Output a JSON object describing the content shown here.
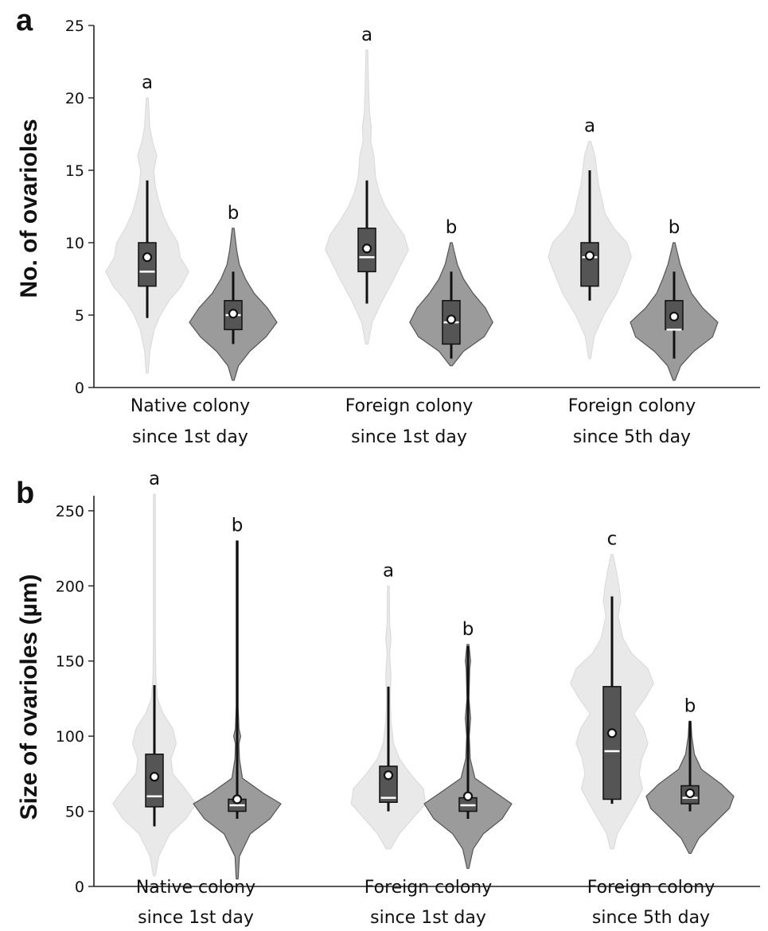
{
  "chart_data": [
    {
      "type": "violin",
      "panel": "a",
      "ylabel": "No. of ovarioles",
      "ylim": [
        0,
        25
      ],
      "yticks": [
        0,
        5,
        10,
        15,
        20,
        25
      ],
      "categories": [
        [
          "Native colony",
          "since 1st day"
        ],
        [
          "Foreign colony",
          "since 1st day"
        ],
        [
          "Foreign colony",
          "since 5th day"
        ]
      ],
      "groups": [
        {
          "violin_color": "#e9e9e9",
          "box": {
            "min": 4.8,
            "q1": 7,
            "median": 8,
            "q3": 10,
            "max": 14.3,
            "mean": 9.0
          },
          "violin": {
            "min": 1,
            "max": 20,
            "density": [
              [
                1,
                0.02
              ],
              [
                2.5,
                0.06
              ],
              [
                4,
                0.16
              ],
              [
                5,
                0.3
              ],
              [
                6,
                0.5
              ],
              [
                7,
                0.78
              ],
              [
                8,
                0.95
              ],
              [
                9,
                0.75
              ],
              [
                10,
                0.7
              ],
              [
                11,
                0.5
              ],
              [
                12,
                0.35
              ],
              [
                13,
                0.25
              ],
              [
                14,
                0.18
              ],
              [
                15,
                0.15
              ],
              [
                16,
                0.22
              ],
              [
                17,
                0.12
              ],
              [
                18,
                0.06
              ],
              [
                19,
                0.04
              ],
              [
                20,
                0.01
              ]
            ]
          },
          "letter": "a"
        },
        {
          "violin_color": "#9b9b9b",
          "box": {
            "min": 3,
            "q1": 4,
            "median": 5,
            "q3": 6,
            "max": 8,
            "mean": 5.1
          },
          "violin": {
            "min": 0.5,
            "max": 11,
            "density": [
              [
                0.5,
                0.01
              ],
              [
                1.5,
                0.12
              ],
              [
                2.5,
                0.38
              ],
              [
                3.5,
                0.75
              ],
              [
                4.5,
                1.0
              ],
              [
                5.5,
                0.78
              ],
              [
                6.5,
                0.48
              ],
              [
                7.5,
                0.28
              ],
              [
                8.5,
                0.14
              ],
              [
                9.5,
                0.08
              ],
              [
                10.5,
                0.04
              ],
              [
                11,
                0.01
              ]
            ]
          },
          "letter": "b"
        },
        {
          "violin_color": "#e9e9e9",
          "box": {
            "min": 5.8,
            "q1": 8,
            "median": 9,
            "q3": 11,
            "max": 14.3,
            "mean": 9.6
          },
          "violin": {
            "min": 3,
            "max": 23.3,
            "density": [
              [
                3,
                0.03
              ],
              [
                4.5,
                0.12
              ],
              [
                6,
                0.35
              ],
              [
                7.5,
                0.62
              ],
              [
                8.5,
                0.78
              ],
              [
                9.5,
                0.95
              ],
              [
                10.5,
                0.85
              ],
              [
                11.5,
                0.62
              ],
              [
                12.5,
                0.42
              ],
              [
                13.5,
                0.28
              ],
              [
                14.5,
                0.2
              ],
              [
                16,
                0.16
              ],
              [
                17,
                0.09
              ],
              [
                18,
                0.1
              ],
              [
                19,
                0.06
              ],
              [
                20.5,
                0.04
              ],
              [
                22,
                0.03
              ],
              [
                23.3,
                0.01
              ]
            ]
          },
          "letter": "a"
        },
        {
          "violin_color": "#9b9b9b",
          "box": {
            "min": 2,
            "q1": 3,
            "median": 4.5,
            "q3": 6,
            "max": 8,
            "mean": 4.7
          },
          "violin": {
            "min": 1.5,
            "max": 10,
            "density": [
              [
                1.5,
                0.02
              ],
              [
                2.5,
                0.28
              ],
              [
                3.5,
                0.75
              ],
              [
                4.5,
                0.95
              ],
              [
                5.5,
                0.78
              ],
              [
                6.5,
                0.5
              ],
              [
                7.5,
                0.28
              ],
              [
                8.5,
                0.14
              ],
              [
                9.5,
                0.06
              ],
              [
                10,
                0.01
              ]
            ]
          },
          "letter": "b"
        },
        {
          "violin_color": "#e9e9e9",
          "box": {
            "min": 6,
            "q1": 7,
            "median": 9,
            "q3": 10,
            "max": 15,
            "mean": 9.1
          },
          "violin": {
            "min": 2,
            "max": 17,
            "density": [
              [
                2,
                0.02
              ],
              [
                3.5,
                0.1
              ],
              [
                5,
                0.32
              ],
              [
                6.5,
                0.62
              ],
              [
                8,
                0.82
              ],
              [
                9,
                0.95
              ],
              [
                10,
                0.85
              ],
              [
                11,
                0.55
              ],
              [
                12,
                0.35
              ],
              [
                13,
                0.28
              ],
              [
                14,
                0.2
              ],
              [
                15,
                0.16
              ],
              [
                16,
                0.12
              ],
              [
                17,
                0.01
              ]
            ]
          },
          "letter": "a"
        },
        {
          "violin_color": "#9b9b9b",
          "box": {
            "min": 2,
            "q1": 4,
            "median": 4,
            "q3": 6,
            "max": 8,
            "mean": 4.9
          },
          "violin": {
            "min": 0.5,
            "max": 10,
            "density": [
              [
                0.5,
                0.01
              ],
              [
                1.5,
                0.15
              ],
              [
                2.5,
                0.45
              ],
              [
                3.5,
                0.88
              ],
              [
                4.5,
                1.0
              ],
              [
                5.5,
                0.65
              ],
              [
                6.5,
                0.4
              ],
              [
                7.5,
                0.26
              ],
              [
                8.5,
                0.14
              ],
              [
                9.5,
                0.06
              ],
              [
                10,
                0.01
              ]
            ]
          },
          "letter": "b"
        }
      ]
    },
    {
      "type": "violin",
      "panel": "b",
      "ylabel": "Size of ovarioles (µm)",
      "ylim": [
        0,
        260
      ],
      "yticks": [
        0,
        50,
        100,
        150,
        200,
        250
      ],
      "categories": [
        [
          "Native colony",
          "since 1st day"
        ],
        [
          "Foreign colony",
          "since 1st day"
        ],
        [
          "Foreign colony",
          "since 5th day"
        ]
      ],
      "groups": [
        {
          "violin_color": "#e9e9e9",
          "box": {
            "min": 40,
            "q1": 53,
            "median": 60,
            "q3": 88,
            "max": 134,
            "mean": 73
          },
          "violin": {
            "min": 7,
            "max": 261,
            "density": [
              [
                7,
                0.02
              ],
              [
                20,
                0.1
              ],
              [
                35,
                0.35
              ],
              [
                45,
                0.72
              ],
              [
                55,
                0.95
              ],
              [
                65,
                0.7
              ],
              [
                75,
                0.42
              ],
              [
                85,
                0.38
              ],
              [
                95,
                0.5
              ],
              [
                105,
                0.42
              ],
              [
                115,
                0.2
              ],
              [
                125,
                0.07
              ],
              [
                140,
                0.03
              ],
              [
                170,
                0.02
              ],
              [
                261,
                0.01
              ]
            ]
          },
          "letter": "a"
        },
        {
          "violin_color": "#9b9b9b",
          "box": {
            "min": 45,
            "q1": 50,
            "median": 54,
            "q3": 58,
            "max": 230,
            "mean": 58
          },
          "violin": {
            "min": 5,
            "max": 230,
            "density": [
              [
                5,
                0.01
              ],
              [
                20,
                0.05
              ],
              [
                35,
                0.3
              ],
              [
                45,
                0.75
              ],
              [
                55,
                1.0
              ],
              [
                62,
                0.6
              ],
              [
                72,
                0.12
              ],
              [
                85,
                0.05
              ],
              [
                95,
                0.04
              ],
              [
                100,
                0.08
              ],
              [
                105,
                0.04
              ],
              [
                120,
                0.02
              ],
              [
                230,
                0.01
              ]
            ]
          },
          "letter": "b"
        },
        {
          "violin_color": "#e9e9e9",
          "box": {
            "min": 50,
            "q1": 56,
            "median": 59,
            "q3": 80,
            "max": 133,
            "mean": 74
          },
          "violin": {
            "min": 25,
            "max": 200,
            "density": [
              [
                25,
                0.05
              ],
              [
                35,
                0.25
              ],
              [
                45,
                0.55
              ],
              [
                55,
                0.85
              ],
              [
                65,
                0.8
              ],
              [
                75,
                0.5
              ],
              [
                85,
                0.25
              ],
              [
                95,
                0.12
              ],
              [
                110,
                0.06
              ],
              [
                125,
                0.04
              ],
              [
                140,
                0.06
              ],
              [
                155,
                0.03
              ],
              [
                165,
                0.06
              ],
              [
                175,
                0.03
              ],
              [
                200,
                0.01
              ]
            ]
          },
          "letter": "a"
        },
        {
          "violin_color": "#9b9b9b",
          "box": {
            "min": 45,
            "q1": 50,
            "median": 54,
            "q3": 59,
            "max": 160,
            "mean": 60
          },
          "violin": {
            "min": 12,
            "max": 161,
            "density": [
              [
                12,
                0.02
              ],
              [
                25,
                0.12
              ],
              [
                35,
                0.35
              ],
              [
                45,
                0.78
              ],
              [
                55,
                1.0
              ],
              [
                62,
                0.65
              ],
              [
                72,
                0.16
              ],
              [
                85,
                0.05
              ],
              [
                100,
                0.03
              ],
              [
                112,
                0.06
              ],
              [
                125,
                0.02
              ],
              [
                145,
                0.04
              ],
              [
                150,
                0.06
              ],
              [
                161,
                0.01
              ]
            ]
          },
          "letter": "b"
        },
        {
          "violin_color": "#e9e9e9",
          "box": {
            "min": 55,
            "q1": 58,
            "median": 90,
            "q3": 133,
            "max": 193,
            "mean": 102
          },
          "violin": {
            "min": 25,
            "max": 221,
            "density": [
              [
                25,
                0.04
              ],
              [
                35,
                0.12
              ],
              [
                45,
                0.32
              ],
              [
                55,
                0.52
              ],
              [
                65,
                0.7
              ],
              [
                75,
                0.62
              ],
              [
                85,
                0.68
              ],
              [
                95,
                0.82
              ],
              [
                105,
                0.72
              ],
              [
                115,
                0.5
              ],
              [
                125,
                0.75
              ],
              [
                135,
                0.95
              ],
              [
                145,
                0.82
              ],
              [
                155,
                0.45
              ],
              [
                165,
                0.25
              ],
              [
                180,
                0.14
              ],
              [
                190,
                0.2
              ],
              [
                200,
                0.16
              ],
              [
                210,
                0.1
              ],
              [
                221,
                0.02
              ]
            ]
          },
          "letter": "c"
        },
        {
          "violin_color": "#9b9b9b",
          "box": {
            "min": 50,
            "q1": 55,
            "median": 59,
            "q3": 67,
            "max": 110,
            "mean": 62
          },
          "violin": {
            "min": 22,
            "max": 110,
            "density": [
              [
                22,
                0.02
              ],
              [
                32,
                0.2
              ],
              [
                42,
                0.55
              ],
              [
                52,
                0.9
              ],
              [
                60,
                1.0
              ],
              [
                68,
                0.72
              ],
              [
                78,
                0.26
              ],
              [
                88,
                0.1
              ],
              [
                100,
                0.04
              ],
              [
                110,
                0.01
              ]
            ]
          },
          "letter": "b"
        }
      ]
    }
  ]
}
